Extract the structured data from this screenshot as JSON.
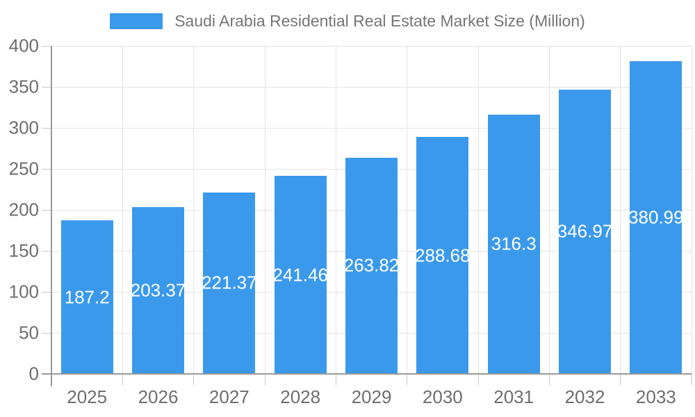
{
  "legend": {
    "series_label": "Saudi Arabia Residential Real Estate Market Size (Million)"
  },
  "chart_data": {
    "type": "bar",
    "title": "Saudi Arabia Residential Real Estate Market Size (Million)",
    "xlabel": "",
    "ylabel": "",
    "categories": [
      "2025",
      "2026",
      "2027",
      "2028",
      "2029",
      "2030",
      "2031",
      "2032",
      "2033"
    ],
    "values": [
      187.2,
      203.37,
      221.37,
      241.46,
      263.82,
      288.68,
      316.3,
      346.97,
      380.99
    ],
    "value_labels": [
      "187.2",
      "203.37",
      "221.37",
      "241.46",
      "263.82",
      "288.68",
      "316.3",
      "346.97",
      "380.99"
    ],
    "ylim": [
      0,
      400
    ],
    "ytick_step": 50,
    "ytick_labels": [
      "0",
      "50",
      "100",
      "150",
      "200",
      "250",
      "300",
      "350",
      "400"
    ],
    "grid": "on",
    "legend_position": "top",
    "colors": {
      "bar": "#3B99EC",
      "bar_value_text": "#ffffff",
      "axis_text": "#6e6e6e",
      "legend_text": "#757575",
      "gridline": "#e4e4e4",
      "tick": "#c9c9c9",
      "axis_line": "#999999",
      "background": "#ffffff"
    }
  }
}
